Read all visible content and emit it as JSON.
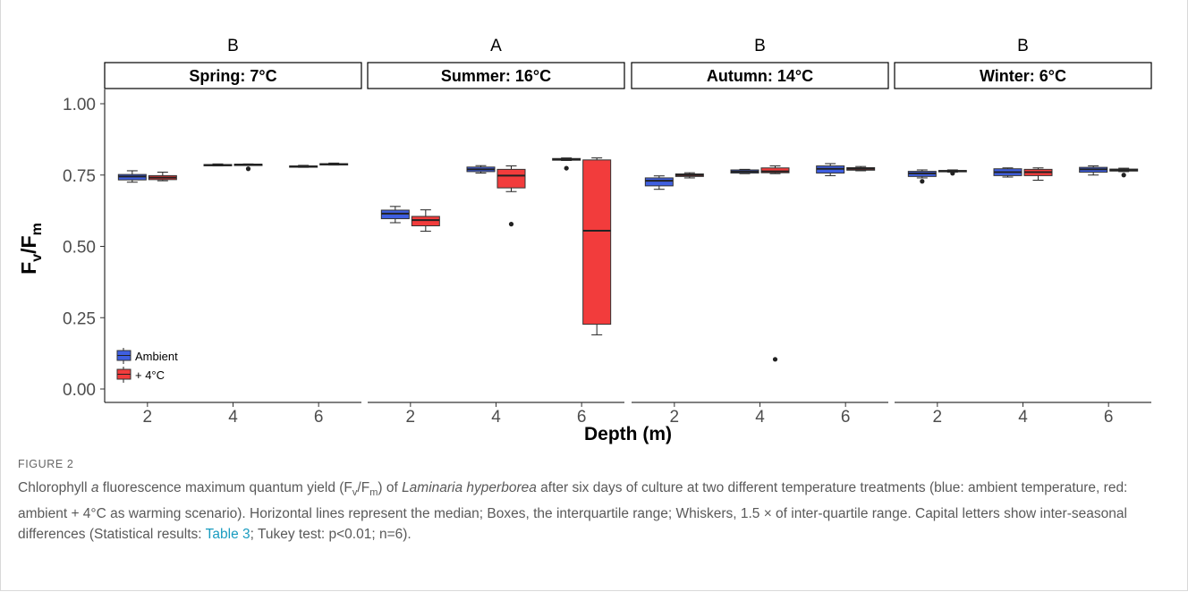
{
  "chart_data": {
    "type": "boxplot",
    "ylabel_main": "F",
    "ylabel_sub1": "v",
    "ylabel_mid": "/F",
    "ylabel_sub2": "m",
    "xlabel": "Depth (m)",
    "ylim": [
      0,
      1.0
    ],
    "y_ticks": [
      "0.00",
      "0.25",
      "0.50",
      "0.75",
      "1.00"
    ],
    "y_tick_values": [
      0,
      0.25,
      0.5,
      0.75,
      1.0
    ],
    "x_ticks": [
      "2",
      "4",
      "6"
    ],
    "legend": {
      "placement": "bottom-left",
      "items": [
        {
          "label": "Ambient",
          "color": "#3f5fe0"
        },
        {
          "label": "+ 4°C",
          "color": "#f23c3c"
        }
      ]
    },
    "colors": {
      "ambient": "#3f5fe0",
      "warm": "#f23c3c"
    },
    "panels": [
      {
        "title": "Spring: 7°C",
        "letter": "B",
        "groups": [
          {
            "depth": "2",
            "ambient": {
              "min": 0.725,
              "q1": 0.733,
              "median": 0.745,
              "q3": 0.752,
              "max": 0.765,
              "outliers": []
            },
            "warm": {
              "min": 0.73,
              "q1": 0.734,
              "median": 0.741,
              "q3": 0.748,
              "max": 0.76,
              "outliers": []
            }
          },
          {
            "depth": "4",
            "ambient": {
              "min": 0.782,
              "q1": 0.783,
              "median": 0.785,
              "q3": 0.787,
              "max": 0.789,
              "outliers": []
            },
            "warm": {
              "min": 0.785,
              "q1": 0.786,
              "median": 0.787,
              "q3": 0.788,
              "max": 0.789,
              "outliers": [
                0.772
              ]
            }
          },
          {
            "depth": "6",
            "ambient": {
              "min": 0.777,
              "q1": 0.778,
              "median": 0.78,
              "q3": 0.782,
              "max": 0.784,
              "outliers": []
            },
            "warm": {
              "min": 0.785,
              "q1": 0.786,
              "median": 0.788,
              "q3": 0.79,
              "max": 0.792,
              "outliers": []
            }
          }
        ]
      },
      {
        "title": "Summer: 16°C",
        "letter": "A",
        "groups": [
          {
            "depth": "2",
            "ambient": {
              "min": 0.583,
              "q1": 0.597,
              "median": 0.615,
              "q3": 0.627,
              "max": 0.64,
              "outliers": []
            },
            "warm": {
              "min": 0.553,
              "q1": 0.572,
              "median": 0.592,
              "q3": 0.605,
              "max": 0.628,
              "outliers": []
            }
          },
          {
            "depth": "4",
            "ambient": {
              "min": 0.757,
              "q1": 0.762,
              "median": 0.77,
              "q3": 0.778,
              "max": 0.783,
              "outliers": []
            },
            "warm": {
              "min": 0.692,
              "q1": 0.705,
              "median": 0.748,
              "q3": 0.77,
              "max": 0.782,
              "outliers": [
                0.578
              ]
            }
          },
          {
            "depth": "6",
            "ambient": {
              "min": 0.801,
              "q1": 0.802,
              "median": 0.805,
              "q3": 0.808,
              "max": 0.81,
              "outliers": [
                0.774
              ]
            },
            "warm": {
              "min": 0.19,
              "q1": 0.227,
              "median": 0.555,
              "q3": 0.803,
              "max": 0.81,
              "outliers": []
            }
          }
        ]
      },
      {
        "title": "Autumn: 14°C",
        "letter": "B",
        "groups": [
          {
            "depth": "2",
            "ambient": {
              "min": 0.7,
              "q1": 0.712,
              "median": 0.73,
              "q3": 0.74,
              "max": 0.747,
              "outliers": []
            },
            "warm": {
              "min": 0.74,
              "q1": 0.745,
              "median": 0.75,
              "q3": 0.754,
              "max": 0.758,
              "outliers": []
            }
          },
          {
            "depth": "4",
            "ambient": {
              "min": 0.755,
              "q1": 0.757,
              "median": 0.762,
              "q3": 0.768,
              "max": 0.77,
              "outliers": []
            },
            "warm": {
              "min": 0.755,
              "q1": 0.758,
              "median": 0.763,
              "q3": 0.775,
              "max": 0.782,
              "outliers": [
                0.104
              ]
            }
          },
          {
            "depth": "6",
            "ambient": {
              "min": 0.748,
              "q1": 0.757,
              "median": 0.772,
              "q3": 0.782,
              "max": 0.79,
              "outliers": []
            },
            "warm": {
              "min": 0.765,
              "q1": 0.767,
              "median": 0.772,
              "q3": 0.776,
              "max": 0.78,
              "outliers": []
            }
          }
        ]
      },
      {
        "title": "Winter: 6°C",
        "letter": "B",
        "groups": [
          {
            "depth": "2",
            "ambient": {
              "min": 0.74,
              "q1": 0.745,
              "median": 0.756,
              "q3": 0.763,
              "max": 0.768,
              "outliers": [
                0.728
              ]
            },
            "warm": {
              "min": 0.76,
              "q1": 0.762,
              "median": 0.764,
              "q3": 0.766,
              "max": 0.768,
              "outliers": [
                0.756
              ]
            }
          },
          {
            "depth": "4",
            "ambient": {
              "min": 0.743,
              "q1": 0.748,
              "median": 0.76,
              "q3": 0.772,
              "max": 0.775,
              "outliers": []
            },
            "warm": {
              "min": 0.732,
              "q1": 0.748,
              "median": 0.76,
              "q3": 0.77,
              "max": 0.775,
              "outliers": []
            }
          },
          {
            "depth": "6",
            "ambient": {
              "min": 0.75,
              "q1": 0.76,
              "median": 0.77,
              "q3": 0.777,
              "max": 0.782,
              "outliers": []
            },
            "warm": {
              "min": 0.762,
              "q1": 0.764,
              "median": 0.767,
              "q3": 0.771,
              "max": 0.774,
              "outliers": [
                0.75
              ]
            }
          }
        ]
      }
    ]
  },
  "caption": {
    "figure_label": "FIGURE 2",
    "t1": "Chlorophyll ",
    "t1_it": "a",
    "t2": " fluorescence maximum quantum yield (F",
    "t2_sub1": "v",
    "t2_mid": "/F",
    "t2_sub2": "m",
    "t3": ") of ",
    "t3_it": "Laminaria hyperborea",
    "t4": " after six days of culture at two different temperature treatments (blue: ambient temperature, red: ambient + 4°C as warming scenario). Horizontal lines represent the median; Boxes, the interquartile range; Whiskers, 1.5 × of inter-quartile range. Capital letters show inter-seasonal differences (Statistical results: ",
    "link": "Table 3",
    "t5": "; Tukey test: p<0.01; n=6)."
  }
}
